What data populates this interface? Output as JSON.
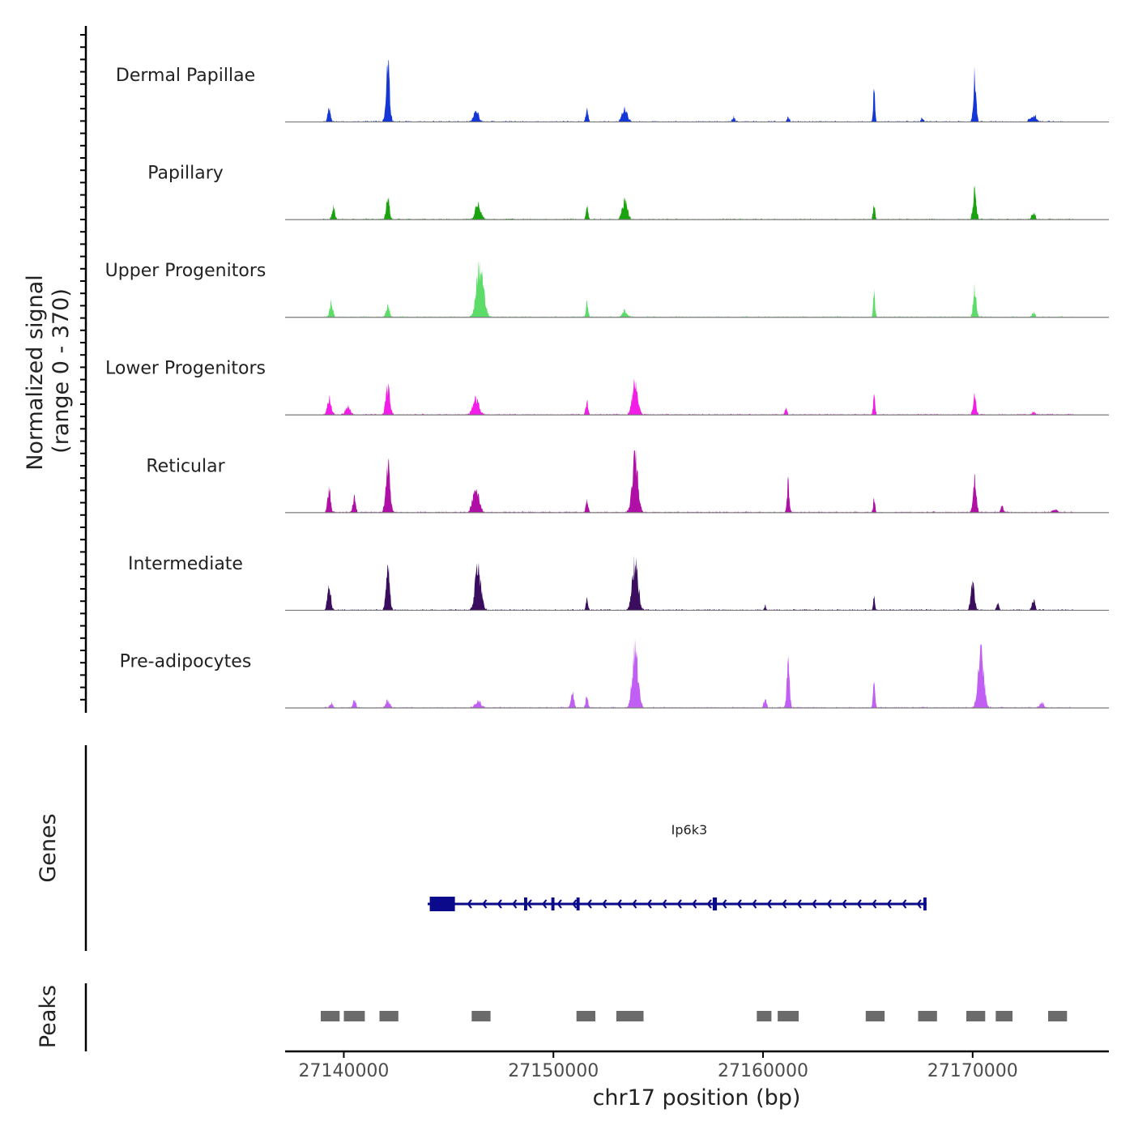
{
  "chart_data": {
    "type": "area",
    "title": "",
    "ylabel_line1": "Normalized signal",
    "ylabel_line2": "(range 0 - 370)",
    "ylim": [
      0,
      370
    ],
    "xlabel": "chr17 position (bp)",
    "xlim": [
      27137200,
      27176500
    ],
    "x_ticks": [
      27140000,
      27150000,
      27160000,
      27170000
    ],
    "x_tick_labels": [
      "27140000",
      "27150000",
      "27160000",
      "27170000"
    ],
    "signal_start": 27139000,
    "signal_end": 27174800,
    "series": [
      {
        "name": "Dermal Papillae",
        "color": "#1537d6",
        "peaks": [
          {
            "x": 27139300,
            "value": 85,
            "width": 220
          },
          {
            "x": 27142100,
            "value": 370,
            "width": 260
          },
          {
            "x": 27146300,
            "value": 75,
            "width": 350
          },
          {
            "x": 27151600,
            "value": 90,
            "width": 160
          },
          {
            "x": 27153400,
            "value": 80,
            "width": 380
          },
          {
            "x": 27158600,
            "value": 30,
            "width": 180
          },
          {
            "x": 27161200,
            "value": 25,
            "width": 200
          },
          {
            "x": 27165300,
            "value": 190,
            "width": 140
          },
          {
            "x": 27167600,
            "value": 20,
            "width": 200
          },
          {
            "x": 27170100,
            "value": 290,
            "width": 200
          },
          {
            "x": 27172900,
            "value": 40,
            "width": 450
          }
        ]
      },
      {
        "name": "Papillary",
        "color": "#1aa30e",
        "peaks": [
          {
            "x": 27139500,
            "value": 75,
            "width": 220
          },
          {
            "x": 27142100,
            "value": 140,
            "width": 240
          },
          {
            "x": 27146400,
            "value": 90,
            "width": 400
          },
          {
            "x": 27151600,
            "value": 85,
            "width": 160
          },
          {
            "x": 27153400,
            "value": 120,
            "width": 380
          },
          {
            "x": 27165300,
            "value": 85,
            "width": 150
          },
          {
            "x": 27170100,
            "value": 175,
            "width": 240
          },
          {
            "x": 27172900,
            "value": 40,
            "width": 250
          }
        ]
      },
      {
        "name": "Upper Progenitors",
        "color": "#5edc6a",
        "peaks": [
          {
            "x": 27139400,
            "value": 105,
            "width": 220
          },
          {
            "x": 27142100,
            "value": 70,
            "width": 260
          },
          {
            "x": 27146500,
            "value": 320,
            "width": 520
          },
          {
            "x": 27151600,
            "value": 85,
            "width": 160
          },
          {
            "x": 27153400,
            "value": 40,
            "width": 380
          },
          {
            "x": 27165300,
            "value": 145,
            "width": 140
          },
          {
            "x": 27170100,
            "value": 180,
            "width": 220
          },
          {
            "x": 27172900,
            "value": 30,
            "width": 200
          }
        ]
      },
      {
        "name": "Lower Progenitors",
        "color": "#f21de6",
        "peaks": [
          {
            "x": 27139300,
            "value": 95,
            "width": 300
          },
          {
            "x": 27140200,
            "value": 55,
            "width": 350
          },
          {
            "x": 27142100,
            "value": 175,
            "width": 300
          },
          {
            "x": 27146300,
            "value": 95,
            "width": 450
          },
          {
            "x": 27151600,
            "value": 95,
            "width": 160
          },
          {
            "x": 27153900,
            "value": 200,
            "width": 420
          },
          {
            "x": 27161100,
            "value": 40,
            "width": 160
          },
          {
            "x": 27165300,
            "value": 135,
            "width": 140
          },
          {
            "x": 27170100,
            "value": 115,
            "width": 220
          },
          {
            "x": 27172900,
            "value": 20,
            "width": 200
          }
        ]
      },
      {
        "name": "Reticular",
        "color": "#b00fa5",
        "peaks": [
          {
            "x": 27139300,
            "value": 150,
            "width": 220
          },
          {
            "x": 27140500,
            "value": 100,
            "width": 200
          },
          {
            "x": 27142100,
            "value": 340,
            "width": 300
          },
          {
            "x": 27146300,
            "value": 155,
            "width": 450
          },
          {
            "x": 27151600,
            "value": 90,
            "width": 160
          },
          {
            "x": 27153900,
            "value": 345,
            "width": 420
          },
          {
            "x": 27161200,
            "value": 190,
            "width": 180
          },
          {
            "x": 27165300,
            "value": 80,
            "width": 140
          },
          {
            "x": 27170100,
            "value": 200,
            "width": 240
          },
          {
            "x": 27171400,
            "value": 40,
            "width": 200
          },
          {
            "x": 27173900,
            "value": 20,
            "width": 300
          }
        ]
      },
      {
        "name": "Intermediate",
        "color": "#3a0d5e",
        "peaks": [
          {
            "x": 27139300,
            "value": 150,
            "width": 250
          },
          {
            "x": 27142100,
            "value": 290,
            "width": 260
          },
          {
            "x": 27146400,
            "value": 270,
            "width": 420
          },
          {
            "x": 27151600,
            "value": 65,
            "width": 160
          },
          {
            "x": 27153900,
            "value": 310,
            "width": 420
          },
          {
            "x": 27160100,
            "value": 25,
            "width": 160
          },
          {
            "x": 27165300,
            "value": 75,
            "width": 140
          },
          {
            "x": 27170000,
            "value": 170,
            "width": 260
          },
          {
            "x": 27171200,
            "value": 50,
            "width": 180
          },
          {
            "x": 27172900,
            "value": 70,
            "width": 220
          }
        ]
      },
      {
        "name": "Pre-adipocytes",
        "color": "#c15ff4",
        "peaks": [
          {
            "x": 27139400,
            "value": 30,
            "width": 200
          },
          {
            "x": 27140500,
            "value": 55,
            "width": 200
          },
          {
            "x": 27142100,
            "value": 45,
            "width": 300
          },
          {
            "x": 27146400,
            "value": 40,
            "width": 450
          },
          {
            "x": 27150900,
            "value": 100,
            "width": 220
          },
          {
            "x": 27151600,
            "value": 80,
            "width": 160
          },
          {
            "x": 27153900,
            "value": 365,
            "width": 420
          },
          {
            "x": 27160100,
            "value": 55,
            "width": 200
          },
          {
            "x": 27161200,
            "value": 300,
            "width": 200
          },
          {
            "x": 27165300,
            "value": 170,
            "width": 140
          },
          {
            "x": 27170400,
            "value": 340,
            "width": 420
          },
          {
            "x": 27173300,
            "value": 30,
            "width": 300
          }
        ]
      }
    ],
    "genes_label": "Genes",
    "genes": [
      {
        "name": "Ip6k3",
        "strand": "-",
        "start": 27144000,
        "end": 27167800,
        "color": "#0a0a8a",
        "thick": [
          [
            27144100,
            27145300
          ]
        ],
        "exons": [
          [
            27148600,
            27148750
          ],
          [
            27149900,
            27150050
          ],
          [
            27151100,
            27151250
          ],
          [
            27157600,
            27157800
          ],
          [
            27167650,
            27167800
          ]
        ]
      }
    ],
    "peaks_label": "Peaks",
    "peak_regions": [
      [
        27138900,
        27139800
      ],
      [
        27140000,
        27141000
      ],
      [
        27141700,
        27142600
      ],
      [
        27146100,
        27147000
      ],
      [
        27151100,
        27152000
      ],
      [
        27153000,
        27154300
      ],
      [
        27159700,
        27160400
      ],
      [
        27160700,
        27161700
      ],
      [
        27164900,
        27165800
      ],
      [
        27167400,
        27168300
      ],
      [
        27169700,
        27170600
      ],
      [
        27171100,
        27171900
      ],
      [
        27173600,
        27174500
      ]
    ]
  }
}
